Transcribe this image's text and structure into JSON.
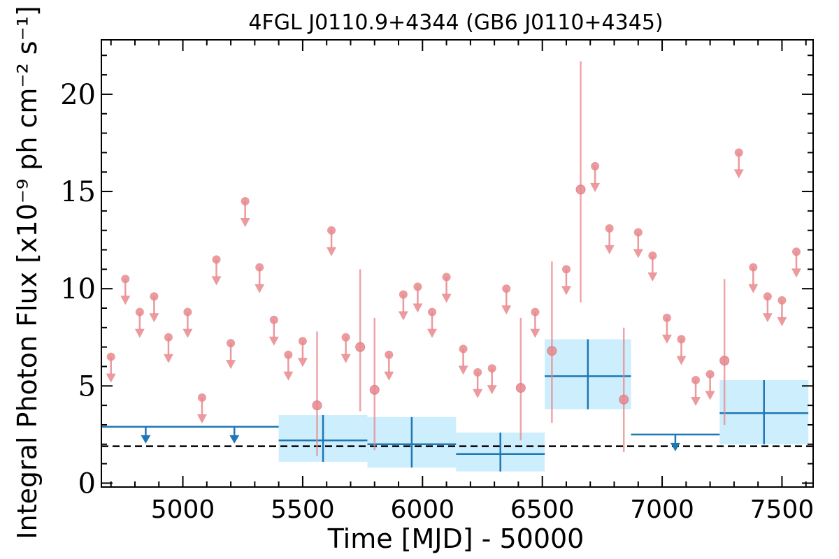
{
  "chart_data": {
    "type": "scatter",
    "title": "4FGL J0110.9+4344 (GB6 J0110+4345)",
    "xlabel": "Time [MJD] - 50000",
    "ylabel": "Integral Photon Flux [x10⁻⁹ ph cm⁻² s⁻¹]",
    "xlim": [
      4660,
      7630
    ],
    "ylim": [
      -0.2,
      22.8
    ],
    "x_ticks": [
      5000,
      5500,
      6000,
      6500,
      7000,
      7500
    ],
    "y_ticks": [
      0,
      5,
      10,
      15,
      20
    ],
    "grid": false,
    "colors": {
      "short_bins": "#e8888d",
      "long_bins": "#1f77b4",
      "long_bin_band": "#cdeefc",
      "baseline": "#000000"
    },
    "baseline_level": 1.9,
    "short_bins_upper_limits": [
      {
        "x": 4700,
        "y": 6.5
      },
      {
        "x": 4760,
        "y": 10.5
      },
      {
        "x": 4820,
        "y": 8.8
      },
      {
        "x": 4880,
        "y": 9.6
      },
      {
        "x": 4940,
        "y": 7.5
      },
      {
        "x": 5020,
        "y": 8.8
      },
      {
        "x": 5080,
        "y": 4.4
      },
      {
        "x": 5140,
        "y": 11.5
      },
      {
        "x": 5200,
        "y": 7.2
      },
      {
        "x": 5260,
        "y": 14.5
      },
      {
        "x": 5320,
        "y": 11.1
      },
      {
        "x": 5380,
        "y": 8.4
      },
      {
        "x": 5440,
        "y": 6.6
      },
      {
        "x": 5500,
        "y": 7.3
      },
      {
        "x": 5620,
        "y": 13.0
      },
      {
        "x": 5680,
        "y": 7.5
      },
      {
        "x": 5860,
        "y": 6.6
      },
      {
        "x": 5920,
        "y": 9.7
      },
      {
        "x": 5980,
        "y": 10.1
      },
      {
        "x": 6040,
        "y": 8.8
      },
      {
        "x": 6100,
        "y": 10.6
      },
      {
        "x": 6170,
        "y": 6.9
      },
      {
        "x": 6230,
        "y": 5.7
      },
      {
        "x": 6290,
        "y": 5.9
      },
      {
        "x": 6350,
        "y": 10.0
      },
      {
        "x": 6470,
        "y": 8.8
      },
      {
        "x": 6600,
        "y": 11.0
      },
      {
        "x": 6720,
        "y": 16.3
      },
      {
        "x": 6780,
        "y": 13.1
      },
      {
        "x": 6900,
        "y": 12.9
      },
      {
        "x": 6960,
        "y": 11.7
      },
      {
        "x": 7020,
        "y": 8.5
      },
      {
        "x": 7080,
        "y": 7.4
      },
      {
        "x": 7140,
        "y": 5.3
      },
      {
        "x": 7200,
        "y": 5.6
      },
      {
        "x": 7320,
        "y": 17.0
      },
      {
        "x": 7380,
        "y": 11.1
      },
      {
        "x": 7440,
        "y": 9.6
      },
      {
        "x": 7500,
        "y": 9.4
      },
      {
        "x": 7560,
        "y": 11.9
      }
    ],
    "short_bins_detections": [
      {
        "x": 5560,
        "y": 4.0,
        "ylow": 1.4,
        "yhigh": 7.8
      },
      {
        "x": 5740,
        "y": 7.0,
        "ylow": 3.7,
        "yhigh": 11.0
      },
      {
        "x": 5800,
        "y": 4.8,
        "ylow": 1.7,
        "yhigh": 8.5
      },
      {
        "x": 6410,
        "y": 4.9,
        "ylow": 2.2,
        "yhigh": 8.5
      },
      {
        "x": 6540,
        "y": 6.8,
        "ylow": 3.1,
        "yhigh": 11.4
      },
      {
        "x": 6660,
        "y": 15.1,
        "ylow": 9.3,
        "yhigh": 21.7
      },
      {
        "x": 6840,
        "y": 4.3,
        "ylow": 1.6,
        "yhigh": 8.0
      },
      {
        "x": 7260,
        "y": 6.3,
        "ylow": 3.0,
        "yhigh": 10.5
      }
    ],
    "long_bins_upper_limits": [
      {
        "x0": 4660,
        "x1": 5030,
        "y": 2.9
      },
      {
        "x0": 5030,
        "x1": 5400,
        "y": 2.9
      },
      {
        "x0": 6870,
        "x1": 7240,
        "y": 2.5
      }
    ],
    "long_bins_detections": [
      {
        "x0": 5400,
        "x1": 5770,
        "y": 2.2,
        "ylow": 1.1,
        "yhigh": 3.5
      },
      {
        "x0": 5770,
        "x1": 6140,
        "y": 2.0,
        "ylow": 0.8,
        "yhigh": 3.4
      },
      {
        "x0": 6140,
        "x1": 6510,
        "y": 1.5,
        "ylow": 0.6,
        "yhigh": 2.6
      },
      {
        "x0": 6510,
        "x1": 6870,
        "y": 5.5,
        "ylow": 3.8,
        "yhigh": 7.4
      },
      {
        "x0": 7240,
        "x1": 7610,
        "y": 3.6,
        "ylow": 2.0,
        "yhigh": 5.3
      }
    ]
  }
}
